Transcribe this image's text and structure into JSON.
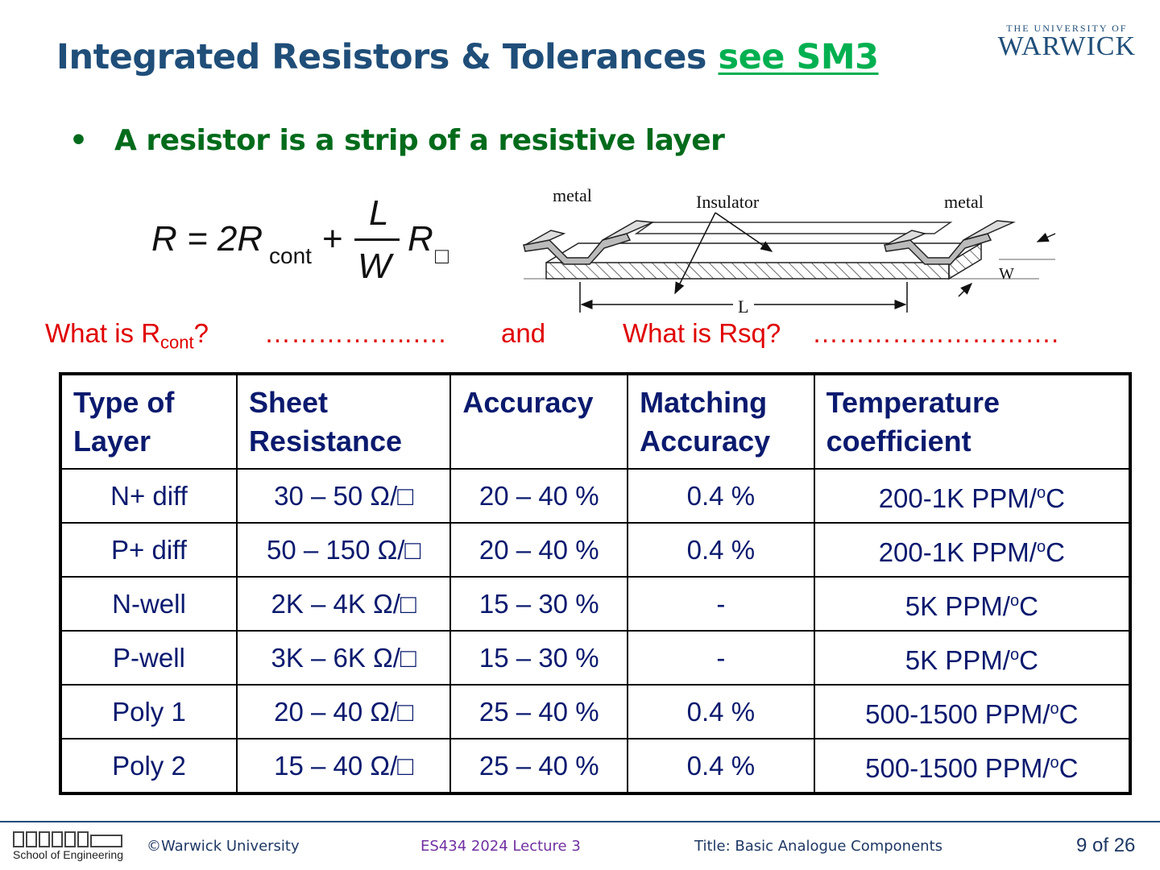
{
  "header": {
    "title": "Integrated Resistors & Tolerances",
    "link": "see SM3",
    "logo_small": "THE UNIVERSITY OF",
    "logo_big": "WARWICK"
  },
  "bullet": {
    "marker": "•",
    "text": "A resistor is a strip of a resistive layer"
  },
  "formula": {
    "lhs": "R = 2R",
    "cont_sub": "cont",
    "plus": "+",
    "numerator": "L",
    "denominator": "W",
    "rsq": "R",
    "square": "□"
  },
  "diagram": {
    "metal_left": "metal",
    "insulator": "Insulator",
    "metal_right": "metal",
    "w_label": "W",
    "l_label": "L"
  },
  "questions": {
    "q1_prefix": "What is R",
    "q1_sub": "cont",
    "q1_suffix": "?",
    "dots1": "……………..….",
    "and": "and",
    "q2": "What is Rsq?",
    "dots2": "………………………."
  },
  "table": {
    "headers": [
      [
        "Type of",
        "Layer"
      ],
      [
        "Sheet",
        "Resistance"
      ],
      [
        "Accuracy",
        ""
      ],
      [
        "Matching",
        "Accuracy"
      ],
      [
        "Temperature",
        "coefficient"
      ]
    ],
    "rows": [
      {
        "type": "N+ diff",
        "sheet": "30 – 50 Ω/□",
        "accuracy": "20 – 40 %",
        "matching": "0.4 %",
        "tempco": "200-1K PPM/",
        "tempco_sup": "o",
        "tempco_unit": "C"
      },
      {
        "type": "P+ diff",
        "sheet": "50 – 150 Ω/□",
        "accuracy": "20 – 40 %",
        "matching": "0.4 %",
        "tempco": "200-1K PPM/",
        "tempco_sup": "o",
        "tempco_unit": "C"
      },
      {
        "type": "N-well",
        "sheet": "2K – 4K Ω/□",
        "accuracy": "15 – 30 %",
        "matching": "-",
        "tempco": "5K PPM/",
        "tempco_sup": "o",
        "tempco_unit": "C"
      },
      {
        "type": "P-well",
        "sheet": "3K – 6K Ω/□",
        "accuracy": "15 – 30 %",
        "matching": "-",
        "tempco": "5K PPM/",
        "tempco_sup": "o",
        "tempco_unit": "C"
      },
      {
        "type": "Poly 1",
        "sheet": "20 – 40 Ω/□",
        "accuracy": "25 – 40 %",
        "matching": "0.4 %",
        "tempco": "500-1500 PPM/",
        "tempco_sup": "o",
        "tempco_unit": "C"
      },
      {
        "type": "Poly 2",
        "sheet": "15 – 40 Ω/□",
        "accuracy": "25 – 40 %",
        "matching": "0.4 %",
        "tempco": "500-1500 PPM/",
        "tempco_sup": "o",
        "tempco_unit": "C"
      }
    ]
  },
  "footer": {
    "school": "School of Engineering",
    "copyright": "©Warwick University",
    "course": "ES434 2024 Lecture 3",
    "title": "Title: Basic Analogue Components",
    "page": "9 of 26"
  },
  "colors": {
    "title": "#1f4e79",
    "link": "#00b050",
    "bullet": "#006b1b",
    "question": "#e00000",
    "table_text": "#0a1a6e",
    "course": "#7030a0"
  }
}
